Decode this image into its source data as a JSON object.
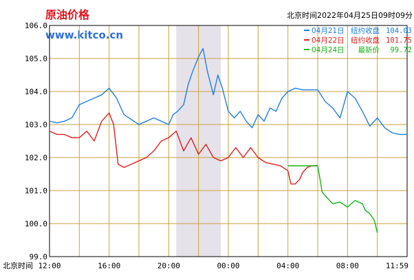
{
  "header": {
    "title": "原油价格",
    "site": "www.kitco.cn",
    "timestamp": "北京时间2022年04月25日09时09分"
  },
  "colors": {
    "title": "#e0141e",
    "site": "#2f6fd8",
    "grid": "#c9a23a",
    "shade": "#e6e2ea",
    "apr21": "#1e7fe0",
    "apr22": "#e01e1e",
    "apr24": "#14b414"
  },
  "legend": [
    {
      "date": "04月21日",
      "label": "纽约收盘",
      "value": "104.03",
      "color": "#1e7fe0"
    },
    {
      "date": "04月22日",
      "label": "纽约收盘",
      "value": "101.75",
      "color": "#e01e1e"
    },
    {
      "date": "04月24日",
      "label": "最新价",
      "value": "99.72",
      "color": "#14b414"
    }
  ],
  "chart_data": {
    "type": "line",
    "x_axis_prefix": "北京时间",
    "xlim": [
      12,
      36
    ],
    "ylim": [
      99,
      106
    ],
    "y_ticks": [
      "106.0",
      "105.0",
      "104.0",
      "103.0",
      "102.0",
      "101.0",
      "100.0",
      "99.0"
    ],
    "y_tick_values": [
      106,
      105,
      104,
      103,
      102,
      101,
      100,
      99
    ],
    "x_ticks": [
      "12:00",
      "16:00",
      "20:00",
      "00:00",
      "04:00",
      "08:00",
      "11:59"
    ],
    "x_tick_hours": [
      12,
      16,
      20,
      24,
      28,
      32,
      35.98
    ],
    "grid_hours": [
      14,
      16,
      18,
      20,
      22,
      24,
      26,
      28,
      30,
      32,
      34
    ],
    "grid_values": [
      105,
      104,
      103,
      102,
      101,
      100
    ],
    "shaded_range": [
      20.5,
      23.5
    ],
    "series": [
      {
        "name": "04月21日",
        "color": "#1e7fe0",
        "x": [
          12,
          12.5,
          13,
          13.5,
          14,
          14.5,
          15,
          15.5,
          16,
          16.5,
          17,
          17.5,
          18,
          18.5,
          19,
          19.5,
          20,
          20.3,
          20.6,
          21,
          21.3,
          21.6,
          22,
          22.3,
          22.6,
          23,
          23.3,
          23.6,
          24,
          24.4,
          24.8,
          25.2,
          25.6,
          26,
          26.4,
          26.8,
          27.2,
          27.6,
          28,
          28.5,
          29,
          29.5,
          30,
          30.5,
          31,
          31.5,
          32,
          32.5,
          33,
          33.5,
          34,
          34.5,
          35,
          35.5,
          36
        ],
        "y": [
          103.1,
          103.05,
          103.1,
          103.2,
          103.6,
          103.7,
          103.8,
          103.9,
          104.1,
          103.8,
          103.3,
          103.15,
          103.0,
          103.1,
          103.2,
          103.1,
          103.0,
          103.3,
          103.4,
          103.6,
          104.2,
          104.6,
          105.05,
          105.3,
          104.6,
          103.9,
          104.5,
          104.1,
          103.4,
          103.2,
          103.4,
          103.1,
          102.9,
          103.3,
          103.1,
          103.5,
          103.4,
          103.8,
          104.0,
          104.1,
          104.05,
          104.05,
          104.05,
          103.7,
          103.5,
          103.2,
          104.0,
          103.8,
          103.4,
          102.95,
          103.2,
          102.9,
          102.75,
          102.7,
          102.7
        ]
      },
      {
        "name": "04月22日",
        "color": "#e01e1e",
        "x": [
          12,
          12.5,
          13,
          13.5,
          14,
          14.5,
          15,
          15.5,
          16,
          16.3,
          16.6,
          17,
          17.5,
          18,
          18.5,
          19,
          19.5,
          20,
          20.5,
          21,
          21.5,
          22,
          22.5,
          23,
          23.5,
          24,
          24.5,
          25,
          25.5,
          26,
          26.5,
          27,
          27.5,
          28,
          28.2,
          28.5,
          28.8,
          29,
          29.3,
          29.6,
          30
        ],
        "y": [
          102.8,
          102.7,
          102.7,
          102.6,
          102.6,
          102.8,
          102.5,
          103.1,
          103.35,
          103.0,
          101.8,
          101.7,
          101.8,
          101.9,
          102.0,
          102.2,
          102.5,
          102.6,
          102.8,
          102.2,
          102.6,
          102.1,
          102.4,
          102.0,
          101.9,
          102.0,
          102.3,
          102.0,
          102.3,
          102.0,
          101.85,
          101.8,
          101.75,
          101.6,
          101.2,
          101.2,
          101.35,
          101.55,
          101.7,
          101.75,
          101.75
        ]
      },
      {
        "name": "04月24日",
        "color": "#14b414",
        "x": [
          28,
          28.5,
          29,
          29.5,
          30,
          30.3,
          30.6,
          31,
          31.5,
          32,
          32.5,
          33,
          33.2,
          33.5,
          33.8,
          34.0
        ],
        "y": [
          101.75,
          101.75,
          101.75,
          101.75,
          101.75,
          100.95,
          100.8,
          100.6,
          100.65,
          100.5,
          100.7,
          100.6,
          100.4,
          100.3,
          100.1,
          99.72
        ]
      }
    ]
  }
}
